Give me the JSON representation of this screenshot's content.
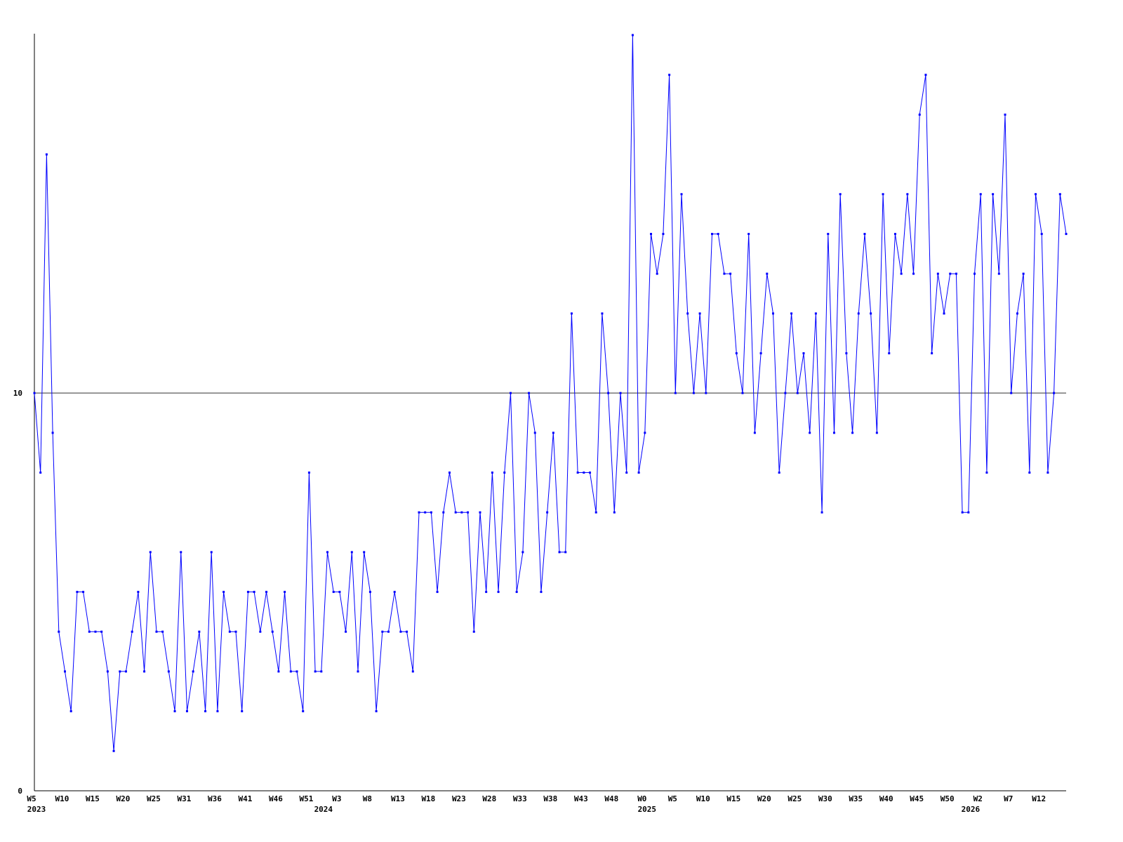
{
  "chart_data": {
    "type": "line",
    "color": "#0000ff",
    "values": [
      10,
      8,
      16,
      9,
      4,
      3,
      2,
      5,
      5,
      4,
      4,
      4,
      3,
      1,
      3,
      3,
      4,
      5,
      3,
      6,
      4,
      4,
      3,
      2,
      6,
      2,
      3,
      4,
      2,
      6,
      2,
      5,
      4,
      4,
      2,
      5,
      5,
      4,
      5,
      4,
      3,
      5,
      3,
      3,
      2,
      8,
      3,
      3,
      6,
      5,
      5,
      4,
      6,
      3,
      6,
      5,
      2,
      4,
      4,
      5,
      4,
      4,
      3,
      7,
      7,
      7,
      5,
      7,
      8,
      7,
      7,
      7,
      4,
      7,
      5,
      8,
      5,
      8,
      10,
      5,
      6,
      10,
      9,
      5,
      7,
      9,
      6,
      6,
      12,
      8,
      8,
      8,
      7,
      12,
      10,
      7,
      10,
      8,
      19,
      8,
      9,
      14,
      13,
      14,
      18,
      10,
      15,
      12,
      10,
      12,
      10,
      14,
      14,
      13,
      13,
      11,
      10,
      14,
      9,
      11,
      13,
      12,
      8,
      10,
      12,
      10,
      11,
      9,
      12,
      7,
      14,
      9,
      15,
      11,
      9,
      12,
      14,
      12,
      9,
      15,
      11,
      14,
      13,
      15,
      13,
      17,
      18,
      11,
      13,
      12,
      13,
      13,
      7,
      7,
      13,
      15,
      8,
      15,
      13,
      17,
      10,
      12,
      13,
      8,
      15,
      14,
      8,
      10,
      15,
      14
    ],
    "xlim": [
      0,
      169
    ],
    "xticks": [
      {
        "value": 0,
        "label": "W5"
      },
      {
        "value": 5,
        "label": "W10"
      },
      {
        "value": 10,
        "label": "W15"
      },
      {
        "value": 15,
        "label": "W20"
      },
      {
        "value": 20,
        "label": "W25"
      },
      {
        "value": 25,
        "label": "W31"
      },
      {
        "value": 30,
        "label": "W36"
      },
      {
        "value": 35,
        "label": "W41"
      },
      {
        "value": 40,
        "label": "W46"
      },
      {
        "value": 45,
        "label": "W51"
      },
      {
        "value": 50,
        "label": "W3"
      },
      {
        "value": 55,
        "label": "W8"
      },
      {
        "value": 60,
        "label": "W13"
      },
      {
        "value": 65,
        "label": "W18"
      },
      {
        "value": 70,
        "label": "W23"
      },
      {
        "value": 75,
        "label": "W28"
      },
      {
        "value": 80,
        "label": "W33"
      },
      {
        "value": 85,
        "label": "W38"
      },
      {
        "value": 90,
        "label": "W43"
      },
      {
        "value": 95,
        "label": "W48"
      },
      {
        "value": 100,
        "label": "W0"
      },
      {
        "value": 105,
        "label": "W5"
      },
      {
        "value": 110,
        "label": "W10"
      },
      {
        "value": 115,
        "label": "W15"
      },
      {
        "value": 120,
        "label": "W20"
      },
      {
        "value": 125,
        "label": "W25"
      },
      {
        "value": 130,
        "label": "W30"
      },
      {
        "value": 135,
        "label": "W35"
      },
      {
        "value": 140,
        "label": "W40"
      },
      {
        "value": 145,
        "label": "W45"
      },
      {
        "value": 150,
        "label": "W50"
      },
      {
        "value": 155,
        "label": "W2"
      },
      {
        "value": 160,
        "label": "W7"
      },
      {
        "value": 165,
        "label": "W12"
      }
    ],
    "year_ticks": [
      {
        "value": 0,
        "label": "2023"
      },
      {
        "value": 47,
        "label": "2024"
      },
      {
        "value": 100,
        "label": "2025"
      },
      {
        "value": 153,
        "label": "2026"
      }
    ],
    "ylim": [
      0,
      19
    ],
    "yticks": [
      0,
      10
    ],
    "grid": true
  }
}
